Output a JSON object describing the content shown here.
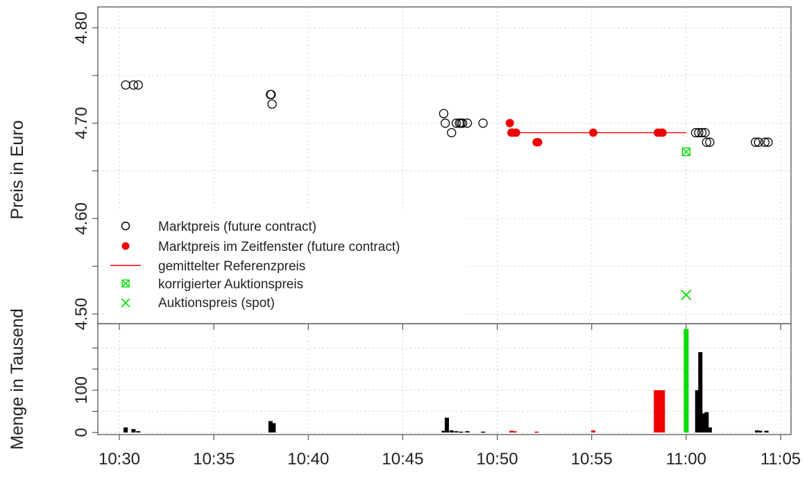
{
  "chart_data": [
    {
      "type": "scatter",
      "ylabel": "Preis in Euro",
      "ylim": [
        4.5,
        4.8
      ],
      "yticks": [
        "4.50",
        "4.60",
        "4.70",
        "4.80"
      ],
      "xticks": [
        "10:30",
        "10:35",
        "10:40",
        "10:45",
        "10:50",
        "10:55",
        "11:00",
        "11:05"
      ],
      "grid": true,
      "legend_position": "bottom-left",
      "legend": [
        {
          "label": "Marktpreis (future contract)",
          "symbol": "open-circle",
          "color": "#000000"
        },
        {
          "label": "Marktpreis im Zeitfenster (future contract)",
          "symbol": "filled-circle",
          "color": "#ee0000"
        },
        {
          "label": "gemittelter Referenzpreis",
          "symbol": "line",
          "color": "#ee0000"
        },
        {
          "label": "korrigierter Auktionspreis",
          "symbol": "crossed-square",
          "color": "#00dd00"
        },
        {
          "label": "Auktionspreis (spot)",
          "symbol": "x",
          "color": "#00dd00"
        }
      ],
      "series": [
        {
          "name": "Marktpreis (future contract)",
          "color": "#000000",
          "points": [
            [
              "10:30:20",
              4.74
            ],
            [
              "10:30:45",
              4.74
            ],
            [
              "10:31:00",
              4.74
            ],
            [
              "10:38:00",
              4.73
            ],
            [
              "10:38:02",
              4.73
            ],
            [
              "10:38:05",
              4.72
            ],
            [
              "10:47:10",
              4.71
            ],
            [
              "10:47:15",
              4.7
            ],
            [
              "10:47:35",
              4.69
            ],
            [
              "10:47:50",
              4.7
            ],
            [
              "10:48:00",
              4.7
            ],
            [
              "10:48:05",
              4.7
            ],
            [
              "10:48:10",
              4.7
            ],
            [
              "10:48:25",
              4.7
            ],
            [
              "10:49:15",
              4.7
            ],
            [
              "11:00:30",
              4.69
            ],
            [
              "11:00:40",
              4.69
            ],
            [
              "11:00:50",
              4.69
            ],
            [
              "11:01:00",
              4.69
            ],
            [
              "11:01:05",
              4.68
            ],
            [
              "11:01:15",
              4.68
            ],
            [
              "11:03:40",
              4.68
            ],
            [
              "11:03:50",
              4.68
            ],
            [
              "11:04:10",
              4.68
            ],
            [
              "11:04:20",
              4.68
            ]
          ]
        },
        {
          "name": "Marktpreis im Zeitfenster (future contract)",
          "color": "#ee0000",
          "points": [
            [
              "10:50:40",
              4.7
            ],
            [
              "10:50:45",
              4.69
            ],
            [
              "10:50:50",
              4.69
            ],
            [
              "10:51:00",
              4.69
            ],
            [
              "10:52:05",
              4.68
            ],
            [
              "10:52:10",
              4.68
            ],
            [
              "10:55:05",
              4.69
            ],
            [
              "10:58:30",
              4.69
            ],
            [
              "10:58:40",
              4.69
            ],
            [
              "10:58:45",
              4.69
            ]
          ]
        },
        {
          "name": "gemittelter Referenzpreis",
          "color": "#ee0000",
          "line": [
            [
              "10:50:40",
              4.69
            ],
            [
              "11:00:00",
              4.69
            ]
          ]
        },
        {
          "name": "korrigierter Auktionspreis",
          "color": "#00dd00",
          "points": [
            [
              "11:00:00",
              4.67
            ]
          ]
        },
        {
          "name": "Auktionspreis (spot)",
          "color": "#00dd00",
          "points": [
            [
              "11:00:00",
              4.52
            ]
          ]
        }
      ]
    },
    {
      "type": "bar",
      "ylabel": "Menge in Tausend",
      "ylim": [
        0,
        250
      ],
      "yticks": [
        "0",
        "100"
      ],
      "xticks": [
        "10:30",
        "10:35",
        "10:40",
        "10:45",
        "10:50",
        "10:55",
        "11:00",
        "11:05"
      ],
      "grid": true,
      "bars": [
        {
          "time": "10:30:20",
          "value": 12,
          "color": "#000000"
        },
        {
          "time": "10:30:45",
          "value": 8,
          "color": "#000000"
        },
        {
          "time": "10:31:00",
          "value": 3,
          "color": "#000000"
        },
        {
          "time": "10:38:00",
          "value": 27,
          "color": "#000000"
        },
        {
          "time": "10:38:10",
          "value": 22,
          "color": "#000000"
        },
        {
          "time": "10:47:10",
          "value": 4,
          "color": "#000000"
        },
        {
          "time": "10:47:20",
          "value": 35,
          "color": "#000000"
        },
        {
          "time": "10:47:35",
          "value": 5,
          "color": "#000000"
        },
        {
          "time": "10:47:50",
          "value": 3,
          "color": "#000000"
        },
        {
          "time": "10:48:05",
          "value": 2,
          "color": "#000000"
        },
        {
          "time": "10:48:25",
          "value": 3,
          "color": "#000000"
        },
        {
          "time": "10:49:15",
          "value": 2,
          "color": "#000000"
        },
        {
          "time": "10:50:45",
          "value": 4,
          "color": "#ee0000"
        },
        {
          "time": "10:50:55",
          "value": 3,
          "color": "#ee0000"
        },
        {
          "time": "10:52:05",
          "value": 2,
          "color": "#ee0000"
        },
        {
          "time": "10:55:05",
          "value": 5,
          "color": "#ee0000"
        },
        {
          "time": "10:58:35",
          "value": 100,
          "color": "#ee0000"
        },
        {
          "time": "11:00:00",
          "value": 245,
          "color": "#00dd00"
        },
        {
          "time": "11:00:35",
          "value": 100,
          "color": "#000000"
        },
        {
          "time": "11:00:45",
          "value": 190,
          "color": "#000000"
        },
        {
          "time": "11:00:55",
          "value": 45,
          "color": "#000000"
        },
        {
          "time": "11:01:05",
          "value": 48,
          "color": "#000000"
        },
        {
          "time": "11:01:15",
          "value": 12,
          "color": "#000000"
        },
        {
          "time": "11:03:45",
          "value": 5,
          "color": "#000000"
        },
        {
          "time": "11:03:55",
          "value": 4,
          "color": "#000000"
        },
        {
          "time": "11:04:15",
          "value": 4,
          "color": "#000000"
        }
      ]
    }
  ]
}
